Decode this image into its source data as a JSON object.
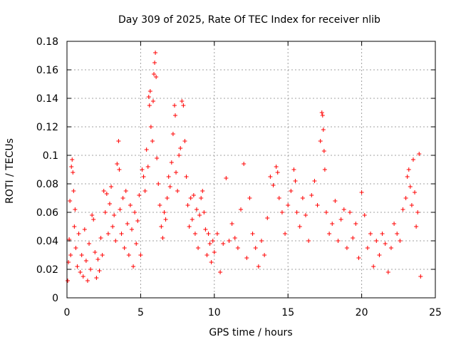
{
  "chart_data": {
    "type": "scatter",
    "title": "Day 309 of 2025, Rate Of TEC Index for receiver nlib",
    "xlabel": "GPS time / hours",
    "ylabel": "ROTI / TECUs",
    "xlim": [
      0,
      25
    ],
    "ylim": [
      0,
      0.18
    ],
    "xticks": [
      "0",
      "5",
      "10",
      "15",
      "20",
      "25"
    ],
    "yticks": [
      "0",
      "0.02",
      "0.04",
      "0.06",
      "0.08",
      "0.1",
      "0.12",
      "0.14",
      "0.16",
      "0.18"
    ],
    "grid": true,
    "marker": "+",
    "marker_color": "#ff0000",
    "series": [
      {
        "points": [
          [
            0.05,
            0.012
          ],
          [
            0.1,
            0.025
          ],
          [
            0.15,
            0.041
          ],
          [
            0.2,
            0.068
          ],
          [
            0.25,
            0.03
          ],
          [
            0.3,
            0.092
          ],
          [
            0.35,
            0.097
          ],
          [
            0.4,
            0.088
          ],
          [
            0.45,
            0.075
          ],
          [
            0.5,
            0.05
          ],
          [
            0.55,
            0.062
          ],
          [
            0.6,
            0.035
          ],
          [
            0.7,
            0.022
          ],
          [
            0.8,
            0.045
          ],
          [
            0.9,
            0.018
          ],
          [
            1.0,
            0.03
          ],
          [
            1.1,
            0.015
          ],
          [
            1.2,
            0.048
          ],
          [
            1.3,
            0.026
          ],
          [
            1.4,
            0.012
          ],
          [
            1.5,
            0.038
          ],
          [
            1.6,
            0.02
          ],
          [
            1.7,
            0.058
          ],
          [
            1.8,
            0.055
          ],
          [
            1.9,
            0.032
          ],
          [
            2.0,
            0.014
          ],
          [
            2.1,
            0.027
          ],
          [
            2.2,
            0.019
          ],
          [
            2.3,
            0.042
          ],
          [
            2.4,
            0.03
          ],
          [
            2.5,
            0.075
          ],
          [
            2.6,
            0.06
          ],
          [
            2.7,
            0.073
          ],
          [
            2.8,
            0.045
          ],
          [
            2.9,
            0.066
          ],
          [
            3.0,
            0.078
          ],
          [
            3.1,
            0.05
          ],
          [
            3.2,
            0.058
          ],
          [
            3.3,
            0.04
          ],
          [
            3.4,
            0.094
          ],
          [
            3.5,
            0.11
          ],
          [
            3.55,
            0.09
          ],
          [
            3.6,
            0.062
          ],
          [
            3.7,
            0.045
          ],
          [
            3.8,
            0.07
          ],
          [
            3.9,
            0.035
          ],
          [
            4.0,
            0.075
          ],
          [
            4.1,
            0.052
          ],
          [
            4.2,
            0.03
          ],
          [
            4.3,
            0.065
          ],
          [
            4.4,
            0.048
          ],
          [
            4.5,
            0.022
          ],
          [
            4.6,
            0.06
          ],
          [
            4.7,
            0.038
          ],
          [
            4.8,
            0.054
          ],
          [
            4.9,
            0.072
          ],
          [
            5.0,
            0.03
          ],
          [
            5.1,
            0.09
          ],
          [
            5.2,
            0.085
          ],
          [
            5.3,
            0.075
          ],
          [
            5.4,
            0.104
          ],
          [
            5.5,
            0.092
          ],
          [
            5.55,
            0.141
          ],
          [
            5.6,
            0.135
          ],
          [
            5.65,
            0.145
          ],
          [
            5.7,
            0.12
          ],
          [
            5.8,
            0.11
          ],
          [
            5.85,
            0.138
          ],
          [
            5.9,
            0.157
          ],
          [
            5.95,
            0.165
          ],
          [
            6.0,
            0.172
          ],
          [
            6.05,
            0.155
          ],
          [
            6.1,
            0.098
          ],
          [
            6.2,
            0.08
          ],
          [
            6.3,
            0.065
          ],
          [
            6.4,
            0.05
          ],
          [
            6.5,
            0.042
          ],
          [
            6.6,
            0.06
          ],
          [
            6.7,
            0.055
          ],
          [
            6.8,
            0.07
          ],
          [
            6.9,
            0.085
          ],
          [
            7.0,
            0.078
          ],
          [
            7.1,
            0.095
          ],
          [
            7.2,
            0.115
          ],
          [
            7.3,
            0.135
          ],
          [
            7.35,
            0.128
          ],
          [
            7.4,
            0.088
          ],
          [
            7.5,
            0.075
          ],
          [
            7.6,
            0.1
          ],
          [
            7.7,
            0.105
          ],
          [
            7.8,
            0.138
          ],
          [
            7.9,
            0.135
          ],
          [
            8.0,
            0.11
          ],
          [
            8.1,
            0.085
          ],
          [
            8.2,
            0.065
          ],
          [
            8.3,
            0.05
          ],
          [
            8.4,
            0.07
          ],
          [
            8.5,
            0.055
          ],
          [
            8.6,
            0.072
          ],
          [
            8.7,
            0.045
          ],
          [
            8.8,
            0.062
          ],
          [
            8.9,
            0.035
          ],
          [
            9.0,
            0.058
          ],
          [
            9.1,
            0.07
          ],
          [
            9.2,
            0.075
          ],
          [
            9.3,
            0.06
          ],
          [
            9.4,
            0.048
          ],
          [
            9.5,
            0.03
          ],
          [
            9.6,
            0.045
          ],
          [
            9.7,
            0.038
          ],
          [
            9.8,
            0.025
          ],
          [
            9.9,
            0.04
          ],
          [
            10.0,
            0.032
          ],
          [
            10.2,
            0.045
          ],
          [
            10.4,
            0.018
          ],
          [
            10.6,
            0.038
          ],
          [
            10.8,
            0.084
          ],
          [
            11.0,
            0.04
          ],
          [
            11.2,
            0.052
          ],
          [
            11.4,
            0.042
          ],
          [
            11.6,
            0.035
          ],
          [
            11.8,
            0.062
          ],
          [
            12.0,
            0.094
          ],
          [
            12.2,
            0.028
          ],
          [
            12.4,
            0.07
          ],
          [
            12.6,
            0.045
          ],
          [
            12.8,
            0.035
          ],
          [
            13.0,
            0.022
          ],
          [
            13.2,
            0.04
          ],
          [
            13.4,
            0.03
          ],
          [
            13.6,
            0.056
          ],
          [
            13.8,
            0.085
          ],
          [
            14.0,
            0.079
          ],
          [
            14.2,
            0.092
          ],
          [
            14.3,
            0.088
          ],
          [
            14.4,
            0.07
          ],
          [
            14.6,
            0.06
          ],
          [
            14.8,
            0.045
          ],
          [
            15.0,
            0.065
          ],
          [
            15.2,
            0.075
          ],
          [
            15.4,
            0.09
          ],
          [
            15.5,
            0.082
          ],
          [
            15.6,
            0.06
          ],
          [
            15.8,
            0.05
          ],
          [
            16.0,
            0.07
          ],
          [
            16.2,
            0.058
          ],
          [
            16.4,
            0.04
          ],
          [
            16.6,
            0.072
          ],
          [
            16.8,
            0.082
          ],
          [
            17.0,
            0.065
          ],
          [
            17.2,
            0.11
          ],
          [
            17.3,
            0.13
          ],
          [
            17.35,
            0.128
          ],
          [
            17.4,
            0.118
          ],
          [
            17.45,
            0.103
          ],
          [
            17.5,
            0.09
          ],
          [
            17.6,
            0.06
          ],
          [
            17.8,
            0.045
          ],
          [
            18.0,
            0.052
          ],
          [
            18.2,
            0.068
          ],
          [
            18.4,
            0.04
          ],
          [
            18.6,
            0.055
          ],
          [
            18.8,
            0.062
          ],
          [
            19.0,
            0.035
          ],
          [
            19.2,
            0.06
          ],
          [
            19.4,
            0.042
          ],
          [
            19.6,
            0.052
          ],
          [
            19.8,
            0.028
          ],
          [
            20.0,
            0.074
          ],
          [
            20.2,
            0.058
          ],
          [
            20.4,
            0.035
          ],
          [
            20.6,
            0.045
          ],
          [
            20.8,
            0.022
          ],
          [
            21.0,
            0.04
          ],
          [
            21.2,
            0.03
          ],
          [
            21.4,
            0.045
          ],
          [
            21.6,
            0.038
          ],
          [
            21.8,
            0.018
          ],
          [
            22.0,
            0.035
          ],
          [
            22.2,
            0.052
          ],
          [
            22.4,
            0.045
          ],
          [
            22.6,
            0.04
          ],
          [
            22.8,
            0.062
          ],
          [
            23.0,
            0.07
          ],
          [
            23.1,
            0.085
          ],
          [
            23.2,
            0.09
          ],
          [
            23.3,
            0.078
          ],
          [
            23.4,
            0.065
          ],
          [
            23.5,
            0.097
          ],
          [
            23.6,
            0.074
          ],
          [
            23.7,
            0.05
          ],
          [
            23.8,
            0.06
          ],
          [
            23.9,
            0.101
          ],
          [
            24.0,
            0.015
          ]
        ]
      }
    ]
  }
}
